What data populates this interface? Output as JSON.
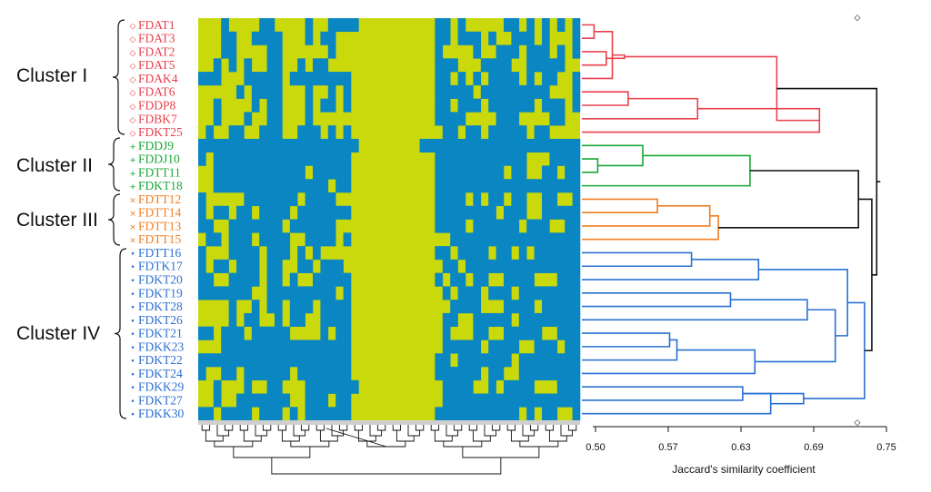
{
  "colors": {
    "presence": "#0a86c2",
    "absence": "#cad90b",
    "heatmap_bg": "#cad90b",
    "cluster_I": "#e8404e",
    "cluster_II": "#18a735",
    "cluster_III": "#f07e22",
    "cluster_IV": "#2a70d2",
    "black": "#111111"
  },
  "clusters": [
    {
      "name": "Cluster I",
      "color_key": "cluster_I"
    },
    {
      "name": "Cluster II",
      "color_key": "cluster_II"
    },
    {
      "name": "Cluster III",
      "color_key": "cluster_III"
    },
    {
      "name": "Cluster IV",
      "color_key": "cluster_IV"
    }
  ],
  "leaves": [
    {
      "label": "FDAT1",
      "cluster": 0,
      "marker": "◇"
    },
    {
      "label": "FDAT3",
      "cluster": 0,
      "marker": "◇"
    },
    {
      "label": "FDAT2",
      "cluster": 0,
      "marker": "◇"
    },
    {
      "label": "FDAT5",
      "cluster": 0,
      "marker": "◇"
    },
    {
      "label": "FDAK4",
      "cluster": 0,
      "marker": "◇"
    },
    {
      "label": "FDAT6",
      "cluster": 0,
      "marker": "◇"
    },
    {
      "label": "FDDP8",
      "cluster": 0,
      "marker": "◇"
    },
    {
      "label": "FDBK7",
      "cluster": 0,
      "marker": "◇"
    },
    {
      "label": "FDKT25",
      "cluster": 0,
      "marker": "◇"
    },
    {
      "label": "FDDJ9",
      "cluster": 1,
      "marker": "+"
    },
    {
      "label": "FDDJ10",
      "cluster": 1,
      "marker": "+"
    },
    {
      "label": "FDTT11",
      "cluster": 1,
      "marker": "+"
    },
    {
      "label": "FDKT18",
      "cluster": 1,
      "marker": "+"
    },
    {
      "label": "FDTT12",
      "cluster": 2,
      "marker": "×"
    },
    {
      "label": "FDTT14",
      "cluster": 2,
      "marker": "×"
    },
    {
      "label": "FDTT13",
      "cluster": 2,
      "marker": "×"
    },
    {
      "label": "FDTT15",
      "cluster": 2,
      "marker": "×"
    },
    {
      "label": "FDTT16",
      "cluster": 3,
      "marker": "•"
    },
    {
      "label": "FDTK17",
      "cluster": 3,
      "marker": "•"
    },
    {
      "label": "FDKT20",
      "cluster": 3,
      "marker": "•"
    },
    {
      "label": "FDKT19",
      "cluster": 3,
      "marker": "•"
    },
    {
      "label": "FDKT28",
      "cluster": 3,
      "marker": "•"
    },
    {
      "label": "FDKT26",
      "cluster": 3,
      "marker": "•"
    },
    {
      "label": "FDKT21",
      "cluster": 3,
      "marker": "•"
    },
    {
      "label": "FDKK23",
      "cluster": 3,
      "marker": "•"
    },
    {
      "label": "FDKT22",
      "cluster": 3,
      "marker": "•"
    },
    {
      "label": "FDKT24",
      "cluster": 3,
      "marker": "•"
    },
    {
      "label": "FDKK29",
      "cluster": 3,
      "marker": "•"
    },
    {
      "label": "FDKT27",
      "cluster": 3,
      "marker": "•"
    },
    {
      "label": "FDKK30",
      "cluster": 3,
      "marker": "•"
    }
  ],
  "chart_data": {
    "type": "dendrogram",
    "xlabel": "Jaccard's similarity coefficient",
    "ticks": [
      0.5,
      0.57,
      0.63,
      0.69,
      0.75
    ],
    "tick_labels": [
      "0.50",
      "0.57",
      "0.63",
      "0.69",
      "0.75"
    ],
    "xlim": [
      0.5,
      0.75
    ],
    "merges": [
      {
        "a": 0,
        "b": 1,
        "sim": 0.51,
        "color": "cluster_I"
      },
      {
        "a": 2,
        "b": 3,
        "sim": 0.52,
        "color": "cluster_I"
      },
      {
        "a": 30,
        "b": 4,
        "sim": 0.525,
        "color": "cluster_I"
      },
      {
        "a": 31,
        "b": 32,
        "sim": 0.535,
        "color": "cluster_I"
      },
      {
        "a": 5,
        "b": 6,
        "sim": 0.538,
        "color": "cluster_I"
      },
      {
        "a": 34,
        "b": 7,
        "sim": 0.595,
        "color": "cluster_I"
      },
      {
        "a": 35,
        "b": 8,
        "sim": 0.695,
        "color": "cluster_I"
      },
      {
        "a": 33,
        "b": 36,
        "sim": 0.66,
        "color": "cluster_I"
      },
      {
        "a": 10,
        "b": 11,
        "sim": 0.513,
        "color": "cluster_II"
      },
      {
        "a": 9,
        "b": 38,
        "sim": 0.55,
        "color": "cluster_II"
      },
      {
        "a": 39,
        "b": 12,
        "sim": 0.638,
        "color": "cluster_II"
      },
      {
        "a": 13,
        "b": 14,
        "sim": 0.562,
        "color": "cluster_III"
      },
      {
        "a": 41,
        "b": 15,
        "sim": 0.605,
        "color": "cluster_III"
      },
      {
        "a": 42,
        "b": 16,
        "sim": 0.612,
        "color": "cluster_III"
      },
      {
        "a": 17,
        "b": 18,
        "sim": 0.59,
        "color": "cluster_IV"
      },
      {
        "a": 44,
        "b": 19,
        "sim": 0.645,
        "color": "cluster_IV"
      },
      {
        "a": 20,
        "b": 21,
        "sim": 0.622,
        "color": "cluster_IV"
      },
      {
        "a": 46,
        "b": 22,
        "sim": 0.685,
        "color": "cluster_IV"
      },
      {
        "a": 23,
        "b": 24,
        "sim": 0.572,
        "color": "cluster_IV"
      },
      {
        "a": 48,
        "b": 25,
        "sim": 0.578,
        "color": "cluster_IV"
      },
      {
        "a": 49,
        "b": 26,
        "sim": 0.642,
        "color": "cluster_IV"
      },
      {
        "a": 47,
        "b": 50,
        "sim": 0.708,
        "color": "cluster_IV"
      },
      {
        "a": 45,
        "b": 51,
        "sim": 0.718,
        "color": "cluster_IV"
      },
      {
        "a": 27,
        "b": 28,
        "sim": 0.632,
        "color": "cluster_IV"
      },
      {
        "a": 53,
        "b": 29,
        "sim": 0.655,
        "color": "cluster_IV"
      },
      {
        "a": 54,
        "b": 53,
        "sim": 0.682,
        "color": "cluster_IV"
      },
      {
        "a": 52,
        "b": 55,
        "sim": 0.732,
        "color": "cluster_IV"
      },
      {
        "a": 40,
        "b": 43,
        "sim": 0.727,
        "color": "black"
      },
      {
        "a": 57,
        "b": 56,
        "sim": 0.738,
        "color": "black"
      },
      {
        "a": 37,
        "b": 58,
        "sim": 0.742,
        "color": "black"
      }
    ],
    "top_marker": "◇",
    "bottom_marker": "◇"
  },
  "heatmap": {
    "columns": 50,
    "rows": [
      "00010000110000100111100000000001101000001101010101",
      "00011001111000101100000000000001101110100111010001",
      "00011000011000000100000000000001000010011101110101",
      "00101010011001011000000000000001110001111001111100",
      "11100011111011111111000000000001101010111101011001",
      "00000101111000100101000000000001111101111111110001",
      "00100001011000101101000000000001101110111111011101",
      "00100010011000100000000000000001111000011100001100",
      "01001100111001110101000000000000110110111110110000",
      "11111111111111111111100000000111111111111111111111",
      "10111111111111111111000000000001111111111110001111",
      "00111111111111011111000000000001111111110110011011",
      "00111111111111111011000000000001111111111111111111",
      "10000011111110111100000000000001111010110110011001",
      "10110110111101111111000000000001111111101110011111",
      "11001111111011111100000000000001111011111101110011",
      "01101110111100111101000000000000011111111111111111",
      "10001111011101010000000000000001101111011010111111",
      "10110111011001101110000000000000110111111111111111",
      "11001111011010011111000000000001011011001111000111",
      "11111110011111111101000000000000101110111011111111",
      "00001001011011101111000000000000011110001111011111",
      "00001011001011001111000000000000110011111011111111",
      "11011101111100001011000000000000100011001111100111",
      "00011111111111111111000000000000111110111100111011",
      "11111111111111111111000000000001101111111011111111",
      "10011011111101111111000000000001111110110011111111",
      "00100010011000111111100000000000111100101111000111",
      "00100111111100111011000000000000111111111111111111",
      "11011110111010111111000000000001111111111101011001"
    ]
  }
}
